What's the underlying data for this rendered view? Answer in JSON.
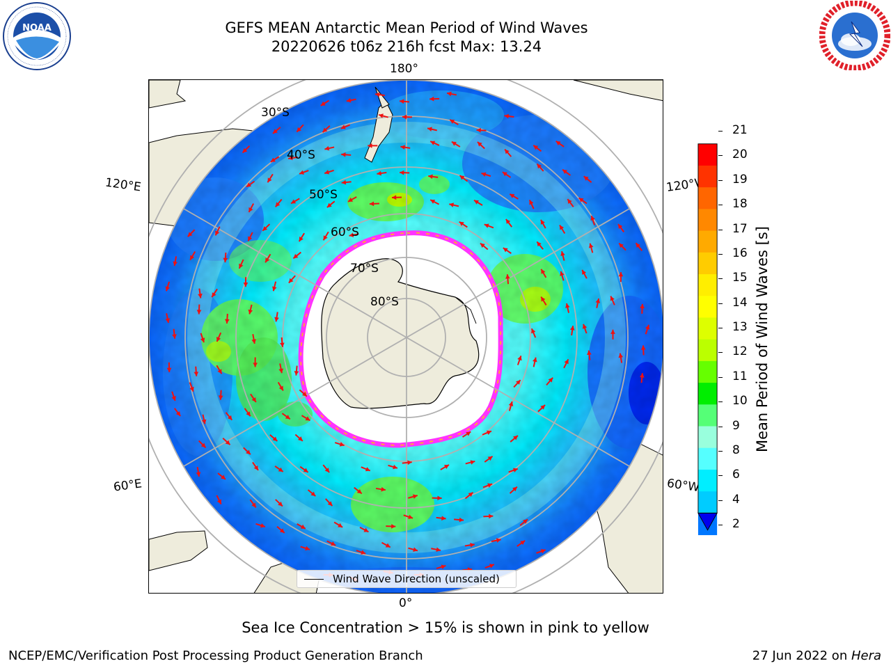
{
  "header": {
    "title_line1": "GEFS MEAN Antarctic Mean Period of Wind Waves",
    "title_line2": "20220626 t06z 216h fcst   Max: 13.24"
  },
  "logos": {
    "left": {
      "name": "NOAA",
      "ring_text": "NATIONAL OCEANIC AND ATMOSPHERIC ADMINISTRATION · U.S. DEPARTMENT OF COMMERCE"
    },
    "right": {
      "name": "NATIONAL WEATHER SERVICE"
    }
  },
  "map": {
    "projection": "south polar stereographic",
    "lon_labels": {
      "top": "180°",
      "bottom": "0°",
      "left_upper": "120°E",
      "left_lower": "60°E",
      "right_upper": "120°W",
      "right_lower": "60°W"
    },
    "lat_labels": [
      "30°S",
      "40°S",
      "50°S",
      "60°S",
      "70°S",
      "80°S"
    ],
    "legend_label": "Wind Wave Direction (unscaled)",
    "colors": {
      "land": "#eeecdc",
      "ice_edge": "#ff33ff",
      "arrow": "#ee1111",
      "grid": "#b0b0b0"
    }
  },
  "colorbar": {
    "label": "Mean Period of Wind Waves [s]",
    "ticks": [
      "21",
      "20",
      "19",
      "18",
      "17",
      "16",
      "15",
      "14",
      "13",
      "12",
      "11",
      "10",
      "9",
      "8",
      "6",
      "4",
      "2"
    ],
    "colors": [
      "#ff0000",
      "#ff3300",
      "#ff6600",
      "#ff8800",
      "#ffaa00",
      "#ffcc00",
      "#ffee00",
      "#ffff00",
      "#ddff00",
      "#bbff00",
      "#66ff00",
      "#00ee00",
      "#55ff77",
      "#99ffdd",
      "#55ffff",
      "#00eeff",
      "#00ccff",
      "#0077ff",
      "#0000ee"
    ]
  },
  "footnote": "Sea Ice Concentration > 15% is shown in pink to yellow",
  "footer": {
    "left": "NCEP/EMC/Verification Post Processing Product Generation Branch",
    "right_date": "27 Jun 2022 on ",
    "right_host": "Hera"
  }
}
